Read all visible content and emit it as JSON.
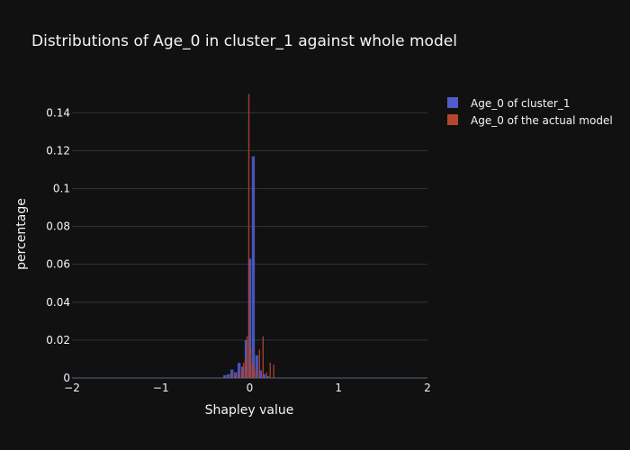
{
  "chart_data": {
    "type": "bar",
    "title": "Distributions of Age_0 in cluster_1 against whole model",
    "xlabel": "Shapley value",
    "ylabel": "percentage",
    "xlim": [
      -2,
      2
    ],
    "ylim": [
      0,
      0.152
    ],
    "x_ticks": [
      {
        "value": -2,
        "label": "−2"
      },
      {
        "value": -1,
        "label": "−1"
      },
      {
        "value": 0,
        "label": "0"
      },
      {
        "value": 1,
        "label": "1"
      },
      {
        "value": 2,
        "label": "2"
      }
    ],
    "y_ticks": [
      {
        "value": 0,
        "label": "0"
      },
      {
        "value": 0.02,
        "label": "0.02"
      },
      {
        "value": 0.04,
        "label": "0.04"
      },
      {
        "value": 0.06,
        "label": "0.06"
      },
      {
        "value": 0.08,
        "label": "0.08"
      },
      {
        "value": 0.1,
        "label": "0.1"
      },
      {
        "value": 0.12,
        "label": "0.12"
      },
      {
        "value": 0.14,
        "label": "0.14"
      }
    ],
    "legend_position": "top-right",
    "series": [
      {
        "name": "Age_0 of cluster_1",
        "color": "#4f5cc9",
        "bin_width": 0.04,
        "bins": [
          {
            "x0": -0.3,
            "value": 0.0015
          },
          {
            "x0": -0.26,
            "value": 0.002
          },
          {
            "x0": -0.22,
            "value": 0.0045
          },
          {
            "x0": -0.18,
            "value": 0.003
          },
          {
            "x0": -0.14,
            "value": 0.008
          },
          {
            "x0": -0.1,
            "value": 0.006
          },
          {
            "x0": -0.06,
            "value": 0.02
          },
          {
            "x0": -0.02,
            "value": 0.063
          },
          {
            "x0": 0.02,
            "value": 0.117
          },
          {
            "x0": 0.06,
            "value": 0.012
          },
          {
            "x0": 0.1,
            "value": 0.004
          },
          {
            "x0": 0.14,
            "value": 0.002
          },
          {
            "x0": 0.18,
            "value": 0.001
          }
        ]
      },
      {
        "name": "Age_0 of the actual model",
        "color": "#b5452f",
        "bin_width": 0.02,
        "bins": [
          {
            "x0": -0.26,
            "value": 0.0005
          },
          {
            "x0": -0.22,
            "value": 0.002
          },
          {
            "x0": -0.18,
            "value": 0.0015
          },
          {
            "x0": -0.14,
            "value": 0.003
          },
          {
            "x0": -0.1,
            "value": 0.004
          },
          {
            "x0": -0.08,
            "value": 0.008
          },
          {
            "x0": -0.06,
            "value": 0.01
          },
          {
            "x0": -0.04,
            "value": 0.022
          },
          {
            "x0": -0.02,
            "value": 0.15
          },
          {
            "x0": 0.0,
            "value": 0.016
          },
          {
            "x0": 0.02,
            "value": 0.008
          },
          {
            "x0": 0.04,
            "value": 0.006
          },
          {
            "x0": 0.06,
            "value": 0.004
          },
          {
            "x0": 0.1,
            "value": 0.015
          },
          {
            "x0": 0.14,
            "value": 0.022
          },
          {
            "x0": 0.18,
            "value": 0.003
          },
          {
            "x0": 0.22,
            "value": 0.008
          },
          {
            "x0": 0.26,
            "value": 0.007
          }
        ]
      }
    ]
  }
}
